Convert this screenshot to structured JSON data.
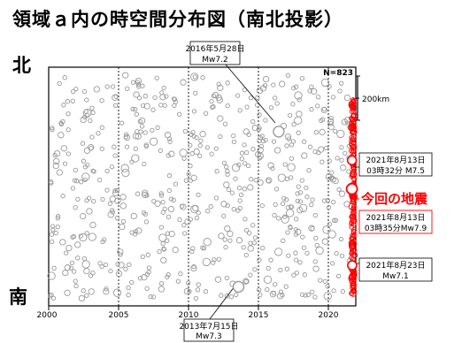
{
  "title": "領域ａ内の時空間分布図（南北投影）",
  "north_label": "北",
  "south_label": "南",
  "colors": {
    "frame": "#000000",
    "old_events": "#999999",
    "recent_events": "#ff0000",
    "highlight": "#ff0000"
  },
  "chart_data": {
    "type": "scatter",
    "count_label": "N=823",
    "scale_label": "200km",
    "x_ticks": [
      "2000",
      "2005",
      "2010",
      "2015",
      "2020"
    ],
    "xlim": [
      2000,
      2021.9
    ],
    "annotations": [
      {
        "date": "2016年5月28日",
        "mag": "Mw7.2",
        "x": 2016.4,
        "y": 0.73
      },
      {
        "date": "2013年7月15日",
        "mag": "Mw7.3",
        "x": 2013.54,
        "y": 0.08
      },
      {
        "date": "2021年8月13日",
        "time_mag": "03時32分 M7.5",
        "x": 2021.62,
        "y": 0.61
      },
      {
        "date": "2021年8月13日",
        "time_mag": "03時35分Mw7.9",
        "x": 2021.62,
        "y": 0.49
      },
      {
        "date": "2021年8月23日",
        "mag": "Mw7.1",
        "x": 2021.64,
        "y": 0.17
      }
    ],
    "highlight_label": "今回の地震"
  }
}
